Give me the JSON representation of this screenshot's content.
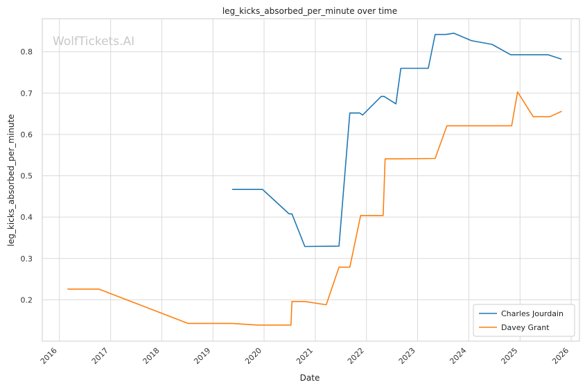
{
  "chart_data": {
    "type": "line",
    "title": "leg_kicks_absorbed_per_minute over time",
    "xlabel": "Date",
    "ylabel": "leg_kicks_absorbed_per_minute",
    "watermark": "WolfTickets.AI",
    "x_ticks": [
      "2016",
      "2017",
      "2018",
      "2019",
      "2020",
      "2021",
      "2022",
      "2023",
      "2024",
      "2025",
      "2026"
    ],
    "y_ticks": [
      "0.2",
      "0.3",
      "0.4",
      "0.5",
      "0.6",
      "0.7",
      "0.8"
    ],
    "xlim": [
      "2015-09-01",
      "2026-03-01"
    ],
    "ylim": [
      0.1,
      0.88
    ],
    "grid": true,
    "legend_position": "bottom-right",
    "series": [
      {
        "name": "Charles Jourdain",
        "color": "#1f77b4",
        "points": [
          [
            "2019-05-18",
            0.467
          ],
          [
            "2019-12-21",
            0.467
          ],
          [
            "2020-06-27",
            0.408
          ],
          [
            "2020-07-18",
            0.408
          ],
          [
            "2020-10-18",
            0.329
          ],
          [
            "2021-06-19",
            0.33
          ],
          [
            "2021-09-04",
            0.652
          ],
          [
            "2021-11-13",
            0.652
          ],
          [
            "2021-12-04",
            0.647
          ],
          [
            "2022-04-16",
            0.692
          ],
          [
            "2022-05-07",
            0.692
          ],
          [
            "2022-07-30",
            0.674
          ],
          [
            "2022-09-03",
            0.76
          ],
          [
            "2023-03-18",
            0.76
          ],
          [
            "2023-05-06",
            0.842
          ],
          [
            "2023-07-22",
            0.842
          ],
          [
            "2023-09-16",
            0.845
          ],
          [
            "2024-01-20",
            0.827
          ],
          [
            "2024-06-15",
            0.818
          ],
          [
            "2024-10-26",
            0.793
          ],
          [
            "2025-07-19",
            0.793
          ],
          [
            "2025-10-25",
            0.782
          ]
        ]
      },
      {
        "name": "Davey Grant",
        "color": "#ff7f0e",
        "points": [
          [
            "2016-02-27",
            0.226
          ],
          [
            "2016-10-08",
            0.226
          ],
          [
            "2018-07-07",
            0.143
          ],
          [
            "2019-05-18",
            0.143
          ],
          [
            "2019-11-16",
            0.139
          ],
          [
            "2020-07-11",
            0.139
          ],
          [
            "2020-07-18",
            0.196
          ],
          [
            "2020-10-18",
            0.196
          ],
          [
            "2021-03-20",
            0.188
          ],
          [
            "2021-06-19",
            0.279
          ],
          [
            "2021-09-04",
            0.279
          ],
          [
            "2021-11-20",
            0.404
          ],
          [
            "2022-04-30",
            0.404
          ],
          [
            "2022-05-14",
            0.541
          ],
          [
            "2022-09-03",
            0.541
          ],
          [
            "2023-05-06",
            0.542
          ],
          [
            "2023-07-29",
            0.621
          ],
          [
            "2024-11-02",
            0.621
          ],
          [
            "2024-12-14",
            0.703
          ],
          [
            "2025-04-05",
            0.643
          ],
          [
            "2025-08-02",
            0.643
          ],
          [
            "2025-10-25",
            0.656
          ]
        ]
      }
    ]
  }
}
